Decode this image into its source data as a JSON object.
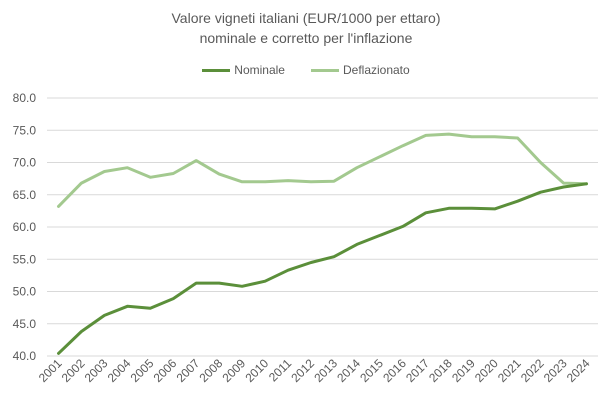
{
  "chart_data": {
    "type": "line",
    "title": "Valore vigneti italiani (EUR/1000 per ettaro)",
    "subtitle": "nominale e corretto per l'inflazione",
    "xlabel": "",
    "ylabel": "",
    "ylim": [
      40,
      80
    ],
    "yticks": [
      "40.0",
      "45.0",
      "50.0",
      "55.0",
      "60.0",
      "65.0",
      "70.0",
      "75.0",
      "80.0"
    ],
    "grid": true,
    "legend_position": "top",
    "categories": [
      "2001",
      "2002",
      "2003",
      "2004",
      "2005",
      "2006",
      "2007",
      "2008",
      "2009",
      "2010",
      "2011",
      "2012",
      "2013",
      "2014",
      "2015",
      "2016",
      "2017",
      "2018",
      "2019",
      "2020",
      "2021",
      "2022",
      "2023",
      "2024"
    ],
    "series": [
      {
        "name": "Nominale",
        "color": "#5b8f3a",
        "values": [
          40.4,
          43.8,
          46.3,
          47.7,
          47.4,
          48.9,
          51.3,
          51.3,
          50.8,
          51.6,
          53.3,
          54.5,
          55.4,
          57.3,
          58.7,
          60.1,
          62.2,
          62.9,
          62.9,
          62.8,
          64.0,
          65.4,
          66.2,
          66.7
        ]
      },
      {
        "name": "Deflazionato",
        "color": "#a3c98f",
        "values": [
          63.2,
          66.8,
          68.6,
          69.2,
          67.7,
          68.3,
          70.3,
          68.2,
          67.0,
          67.0,
          67.2,
          67.0,
          67.1,
          69.2,
          70.9,
          72.6,
          74.2,
          74.4,
          74.0,
          74.0,
          73.8,
          70.0,
          66.8,
          66.7
        ]
      }
    ]
  }
}
